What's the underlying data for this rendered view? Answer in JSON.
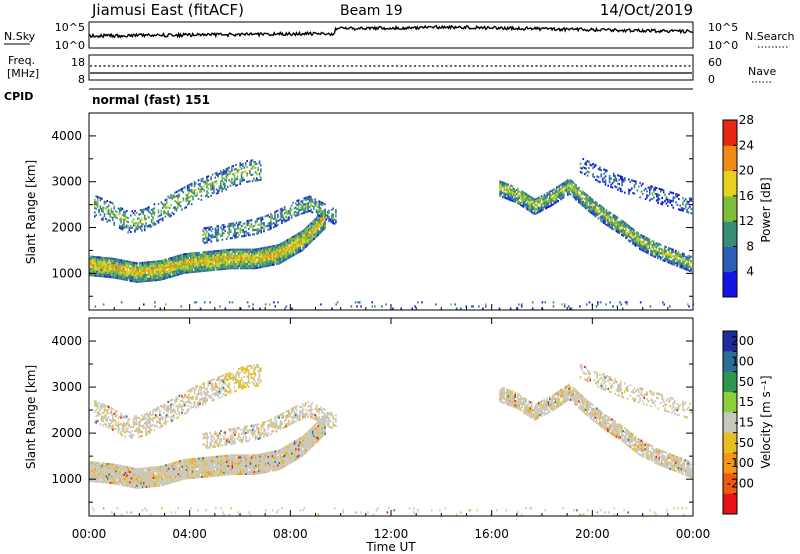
{
  "header": {
    "site": "Jiamusi East (fitACF)",
    "beam": "Beam 19",
    "date": "14/Oct/2019"
  },
  "noise_panel": {
    "left_label": "N.Sky",
    "right_label": "N.Search",
    "left_ticks": [
      "10^5",
      "10^0"
    ],
    "right_ticks": [
      "10^5",
      "10^0"
    ]
  },
  "freq_panel": {
    "label_line1": "Freq.",
    "label_line2": "[MHz]",
    "left_ticks": [
      "18",
      "8"
    ],
    "right_label": "Nave",
    "right_ticks": [
      "60",
      "0"
    ]
  },
  "cpid": {
    "label": "CPID",
    "value": "normal (fast) 151"
  },
  "x_axis": {
    "label": "Time UT",
    "ticks": [
      "00:00",
      "04:00",
      "08:00",
      "12:00",
      "16:00",
      "20:00",
      "00:00"
    ],
    "range_hours": [
      0,
      24
    ]
  },
  "power_colorbar": {
    "label": "Power [dB]",
    "ticks": [
      "4",
      "8",
      "12",
      "16",
      "20",
      "24",
      "28"
    ],
    "colors": [
      "#1414e6",
      "#2a5fb4",
      "#3a8c78",
      "#7dbd3c",
      "#e6d21e",
      "#f08c14",
      "#e62814"
    ]
  },
  "velocity_colorbar": {
    "label": "Velocity [m s⁻¹]",
    "ticks": [
      "200",
      "100",
      "50",
      "15",
      "-15",
      "-50",
      "-100",
      "-200"
    ],
    "colors": [
      "#1e2ca0",
      "#2c6e96",
      "#2e9650",
      "#8ccf3c",
      "#c8c8be",
      "#e6c020",
      "#f59614",
      "#ef5a10",
      "#e61414"
    ]
  },
  "chart_data": [
    {
      "type": "heatmap",
      "title": "Power",
      "ylabel": "Slant Range [km]",
      "yticks": [
        1000,
        2000,
        3000,
        4000
      ],
      "ylim": [
        200,
        4500
      ],
      "xlim": [
        0,
        24
      ],
      "bands": [
        {
          "t0": 0.0,
          "t1": 9.4,
          "center": [
            1150,
            1100,
            1000,
            1050,
            1200,
            1250,
            1300,
            1300,
            1400,
            1700,
            2200
          ],
          "width": 420,
          "base": 0.72,
          "edge": 0.25,
          "density": 0.98
        },
        {
          "t0": 0.2,
          "t1": 6.8,
          "center": [
            2450,
            2300,
            2100,
            2150,
            2350,
            2550,
            2750,
            2900,
            3050,
            3200,
            3250
          ],
          "width": 460,
          "base": 0.5,
          "edge": 0.2,
          "density": 0.45
        },
        {
          "t0": 4.5,
          "t1": 9.8,
          "center": [
            1800,
            1850,
            1900,
            1950,
            2000,
            2100,
            2250,
            2400,
            2500,
            2350,
            2200
          ],
          "width": 320,
          "base": 0.45,
          "edge": 0.2,
          "density": 0.55
        },
        {
          "t0": 16.3,
          "t1": 23.9,
          "center": [
            2850,
            2700,
            2450,
            2650,
            2900,
            2550,
            2250,
            2000,
            1700,
            1500,
            1350,
            1200
          ],
          "width": 360,
          "base": 0.55,
          "edge": 0.2,
          "density": 0.85
        },
        {
          "t0": 19.5,
          "t1": 23.9,
          "center": [
            3350,
            3100,
            2900,
            2750,
            2600,
            2450
          ],
          "width": 320,
          "base": 0.3,
          "edge": 0.1,
          "density": 0.35
        },
        {
          "t0": 0.0,
          "t1": 24.0,
          "center": [
            300,
            300
          ],
          "width": 180,
          "base": 0.3,
          "edge": 0.1,
          "density": 0.06
        }
      ]
    },
    {
      "type": "heatmap",
      "title": "Velocity",
      "ylabel": "Slant Range [km]",
      "yticks": [
        1000,
        2000,
        3000,
        4000
      ],
      "ylim": [
        200,
        4500
      ],
      "xlim": [
        0,
        24
      ],
      "bands": [
        {
          "t0": 0.0,
          "t1": 9.4,
          "center": [
            1150,
            1100,
            1000,
            1050,
            1200,
            1250,
            1300,
            1300,
            1400,
            1700,
            2200
          ],
          "width": 420,
          "base": 0.45,
          "edge": 0.5,
          "density": 0.98
        },
        {
          "t0": 0.2,
          "t1": 6.8,
          "center": [
            2450,
            2300,
            2100,
            2150,
            2350,
            2550,
            2750,
            2900,
            3050,
            3200,
            3250
          ],
          "width": 460,
          "base": 0.55,
          "edge": 0.6,
          "density": 0.5
        },
        {
          "t0": 4.5,
          "t1": 9.8,
          "center": [
            1800,
            1850,
            1900,
            1950,
            2000,
            2100,
            2250,
            2400,
            2500,
            2350,
            2200
          ],
          "width": 320,
          "base": 0.55,
          "edge": 0.5,
          "density": 0.55
        },
        {
          "t0": 16.3,
          "t1": 23.9,
          "center": [
            2850,
            2700,
            2450,
            2650,
            2900,
            2550,
            2250,
            2000,
            1700,
            1500,
            1350,
            1200
          ],
          "width": 360,
          "base": 0.45,
          "edge": 0.5,
          "density": 0.85
        },
        {
          "t0": 19.5,
          "t1": 23.9,
          "center": [
            3350,
            3100,
            2900,
            2750,
            2600,
            2450
          ],
          "width": 320,
          "base": 0.45,
          "edge": 0.4,
          "density": 0.35
        },
        {
          "t0": 0.0,
          "t1": 24.0,
          "center": [
            300,
            300
          ],
          "width": 180,
          "base": 0.5,
          "edge": 0.6,
          "density": 0.06
        }
      ]
    }
  ]
}
